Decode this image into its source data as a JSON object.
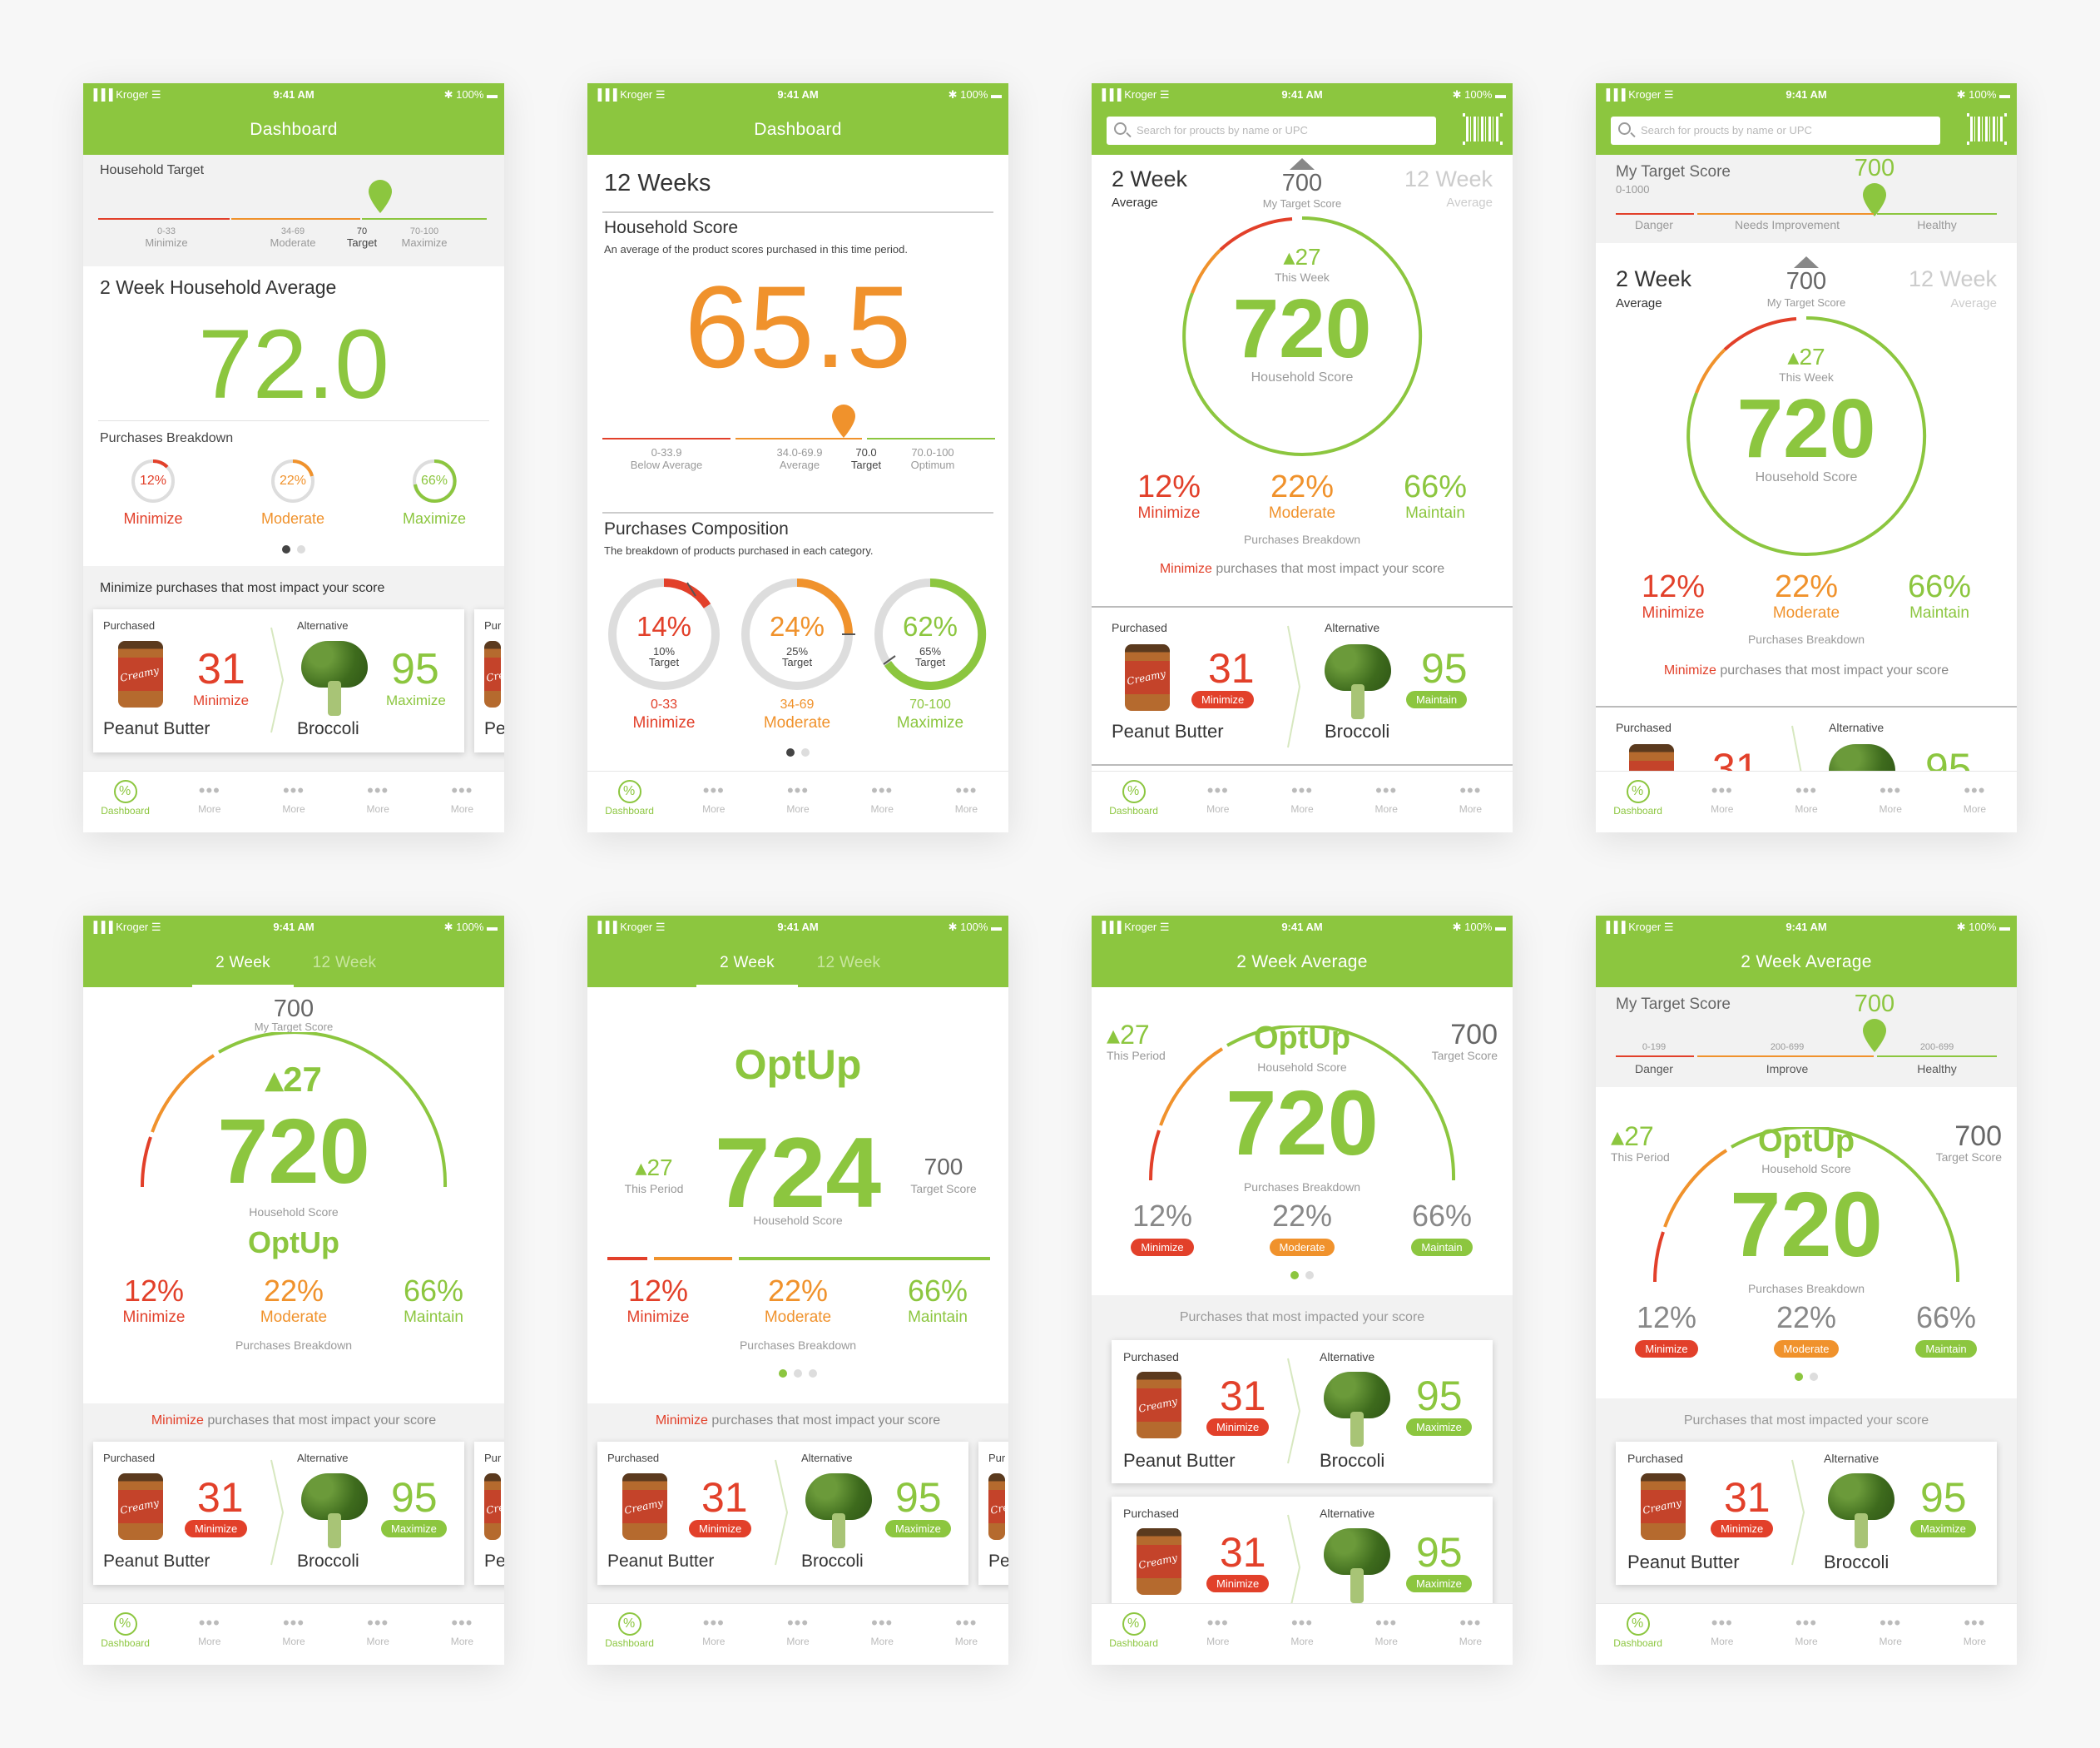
{
  "status": {
    "carrier": "▐▐▐ Kroger ☰",
    "time": "9:41 AM",
    "battery": "✱ 100% ▬"
  },
  "tabbar": {
    "dashboard": "Dashboard",
    "more": "More"
  },
  "common": {
    "purchased": "Purchased",
    "alternative": "Alternative",
    "peanut_butter": "Peanut Butter",
    "broccoli": "Broccoli",
    "score_31": "31",
    "score_95": "95",
    "minimize": "Minimize",
    "moderate": "Moderate",
    "maximize": "Maximize",
    "maintain": "Maintain",
    "pct12": "12%",
    "pct22": "22%",
    "pct66": "66%",
    "purchases_breakdown": "Purchases Breakdown",
    "score720": "720",
    "household_score": "Household Score",
    "target700": "700",
    "my_target_score": "My Target Score",
    "target_score": "Target Score",
    "up27": "▴27",
    "this_week": "This Week",
    "this_period": "This Period",
    "optup": "OptUp",
    "impact_rest": " purchases that most impact your score",
    "impacted": "Purchases that most impacted your score",
    "two_week": "2 Week",
    "twelve_week": "12 Week",
    "average": "Average",
    "search_placeholder": "Search for proucts by name or UPC",
    "two_week_average": "2 Week Average",
    "partial": "Pur",
    "partial_pe": "Pe"
  },
  "s1": {
    "title": "Dashboard",
    "household_target": "Household Target",
    "scale": [
      {
        "range": "0-33",
        "label": "Minimize"
      },
      {
        "range": "34-69",
        "label": "Moderate"
      },
      {
        "range": "70",
        "label": "Target"
      },
      {
        "range": "70-100",
        "label": "Maximize"
      }
    ],
    "avg_title": "2 Week Household Average",
    "avg_value": "72.0",
    "breakdown_title": "Purchases Breakdown",
    "impact_title": "Minimize purchases that most impact your score"
  },
  "s2": {
    "title": "Dashboard",
    "period": "12 Weeks",
    "hs_title": "Household Score",
    "hs_desc": "An average of the product scores purchased in this time period.",
    "value": "65.5",
    "scale": [
      {
        "range": "0-33.9",
        "label": "Below Average"
      },
      {
        "range": "34.0-69.9",
        "label": "Average"
      },
      {
        "range": "70.0",
        "label": "Target"
      },
      {
        "range": "70.0-100",
        "label": "Optimum"
      }
    ],
    "comp_title": "Purchases Composition",
    "comp_desc": "The breakdown of products purchased in each category.",
    "donuts": [
      {
        "pct": "14%",
        "target": "10%",
        "target_label": "Target",
        "range": "0-33",
        "label": "Minimize"
      },
      {
        "pct": "24%",
        "target": "25%",
        "target_label": "Target",
        "range": "34-69",
        "label": "Moderate"
      },
      {
        "pct": "62%",
        "target": "65%",
        "target_label": "Target",
        "range": "70-100",
        "label": "Maximize"
      }
    ]
  },
  "s4": {
    "my_target": "My Target Score",
    "range": "0-1000",
    "marker": "700",
    "scale": [
      "Danger",
      "Needs Improvement",
      "Healthy"
    ]
  },
  "s8": {
    "my_target": "My Target Score",
    "marker": "700",
    "scale": [
      {
        "range": "0-199",
        "label": "Danger"
      },
      {
        "range": "200-699",
        "label": "Improve"
      },
      {
        "range": "200-699",
        "label": "Healthy"
      }
    ]
  },
  "s6": {
    "score": "724"
  },
  "colors": {
    "green": "#8cc63f",
    "orange": "#f0922c",
    "red": "#e2402a"
  }
}
